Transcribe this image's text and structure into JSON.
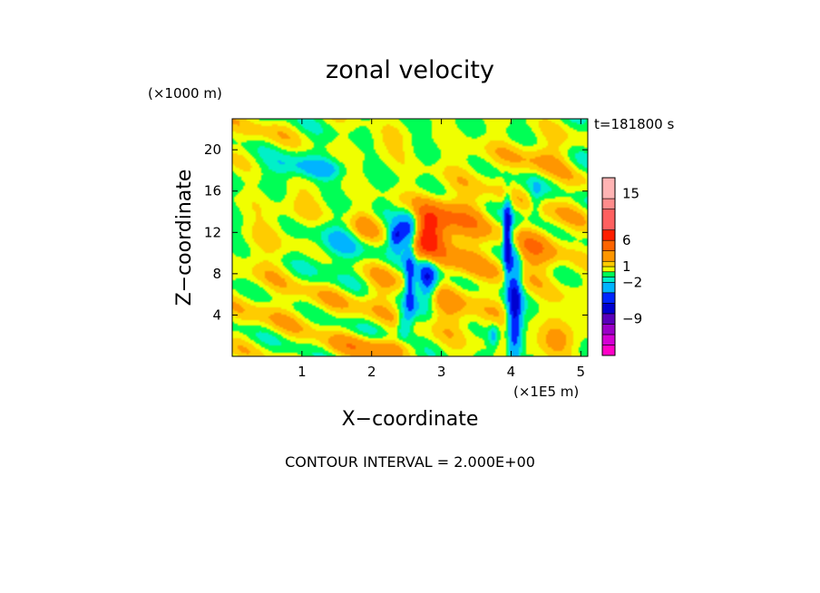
{
  "chart_data": {
    "type": "heatmap",
    "title": "zonal velocity",
    "time_label": "t=181800 s",
    "xlabel": "X−coordinate",
    "ylabel": "Z−coordinate",
    "x_unit": "(×1E5 m)",
    "y_unit": "(×1000 m)",
    "xlim": [
      0,
      5.1
    ],
    "ylim": [
      0,
      23
    ],
    "x_ticks": [
      {
        "value": 1,
        "label": "1"
      },
      {
        "value": 2,
        "label": "2"
      },
      {
        "value": 3,
        "label": "3"
      },
      {
        "value": 4,
        "label": "4"
      },
      {
        "value": 5,
        "label": "5"
      }
    ],
    "y_ticks": [
      {
        "value": 4,
        "label": "4"
      },
      {
        "value": 8,
        "label": "8"
      },
      {
        "value": 12,
        "label": "12"
      },
      {
        "value": 16,
        "label": "16"
      },
      {
        "value": 20,
        "label": "20"
      }
    ],
    "contour_interval": "CONTOUR INTERVAL = 2.000E+00",
    "colorbar": {
      "levels": [
        {
          "color": "#ff00c8"
        },
        {
          "color": "#d400d4"
        },
        {
          "color": "#9b00c8"
        },
        {
          "color": "#5a00bb"
        },
        {
          "color": "#0000d0"
        },
        {
          "color": "#0026ff"
        },
        {
          "color": "#00b4ff"
        },
        {
          "color": "#00f0c8"
        },
        {
          "color": "#00ff55"
        },
        {
          "color": "#f0ff00"
        },
        {
          "color": "#ffcc00"
        },
        {
          "color": "#ff9600"
        },
        {
          "color": "#ff6400"
        },
        {
          "color": "#ff1e00"
        },
        {
          "color": "#ff6060"
        },
        {
          "color": "#ff8c8c"
        },
        {
          "color": "#ffb4b4"
        }
      ],
      "tick_labels": [
        {
          "value": 15,
          "label": "15"
        },
        {
          "value": 6,
          "label": "6"
        },
        {
          "value": 1,
          "label": "1"
        },
        {
          "value": -2,
          "label": "−2"
        },
        {
          "value": -9,
          "label": "−9"
        }
      ]
    },
    "field": {
      "background_value": 0,
      "features": [
        {
          "x": 2.55,
          "z": 12.2,
          "sx": 0.12,
          "sz": 1.4,
          "value": -8
        },
        {
          "x": 2.35,
          "z": 11.6,
          "sx": 0.08,
          "sz": 0.8,
          "value": -6
        },
        {
          "x": 2.75,
          "z": 12.0,
          "sx": 0.2,
          "sz": 1.6,
          "value": 6
        },
        {
          "x": 2.9,
          "z": 12.8,
          "sx": 0.3,
          "sz": 2.0,
          "value": 3
        },
        {
          "x": 2.8,
          "z": 7.5,
          "sx": 0.1,
          "sz": 1.3,
          "value": -7
        },
        {
          "x": 2.55,
          "z": 7.0,
          "sx": 0.05,
          "sz": 2.5,
          "value": -5
        },
        {
          "x": 3.95,
          "z": 11.5,
          "sx": 0.04,
          "sz": 2.5,
          "value": -8
        },
        {
          "x": 4.05,
          "z": 4.5,
          "sx": 0.07,
          "sz": 4.0,
          "value": -7
        },
        {
          "x": 4.3,
          "z": 10.0,
          "sx": 0.25,
          "sz": 1.8,
          "value": 3
        },
        {
          "x": 3.3,
          "z": 9.5,
          "sx": 0.35,
          "sz": 2.0,
          "value": 2
        },
        {
          "x": 2.1,
          "z": 6.0,
          "sx": 0.2,
          "sz": 1.5,
          "value": 2
        },
        {
          "x": 1.65,
          "z": 1.0,
          "sx": 0.3,
          "sz": 0.8,
          "value": 2
        },
        {
          "x": 2.2,
          "z": 0.8,
          "sx": 0.25,
          "sz": 0.7,
          "value": 3
        },
        {
          "x": 4.6,
          "z": 1.5,
          "sx": 0.3,
          "sz": 1.0,
          "value": 2
        },
        {
          "x": 0.9,
          "z": 18.5,
          "sx": 0.3,
          "sz": 0.8,
          "value": -2
        },
        {
          "x": 1.3,
          "z": 18.0,
          "sx": 0.2,
          "sz": 0.6,
          "value": -2
        },
        {
          "x": 1.5,
          "z": 10.5,
          "sx": 0.25,
          "sz": 1.5,
          "value": -2
        },
        {
          "x": 0.45,
          "z": 10.0,
          "sx": 0.3,
          "sz": 2.5,
          "value": 1
        },
        {
          "x": 0.5,
          "z": 4.0,
          "sx": 0.4,
          "sz": 2.0,
          "value": 1
        },
        {
          "x": 1.3,
          "z": 5.0,
          "sx": 0.3,
          "sz": 1.5,
          "value": 1
        },
        {
          "x": 3.6,
          "z": 3.5,
          "sx": 0.35,
          "sz": 2.0,
          "value": 1
        },
        {
          "x": 4.7,
          "z": 13.5,
          "sx": 0.3,
          "sz": 2.5,
          "value": 1
        },
        {
          "x": 3.7,
          "z": 19.0,
          "sx": 0.4,
          "sz": 1.5,
          "value": 1
        },
        {
          "x": 4.5,
          "z": 19.5,
          "sx": 0.25,
          "sz": 1.2,
          "value": 2
        },
        {
          "x": 0.4,
          "z": 21.5,
          "sx": 0.35,
          "sz": 1.0,
          "value": 1
        },
        {
          "x": 1.0,
          "z": 14.5,
          "sx": 0.3,
          "sz": 1.2,
          "value": 1
        },
        {
          "x": 2.2,
          "z": 20.5,
          "sx": 0.25,
          "sz": 1.0,
          "value": 1
        },
        {
          "x": 4.85,
          "z": 5.0,
          "sx": 0.2,
          "sz": 2.0,
          "value": 1
        },
        {
          "x": 3.45,
          "z": 14.0,
          "sx": 0.25,
          "sz": 1.5,
          "value": 2
        },
        {
          "x": 1.9,
          "z": 12.5,
          "sx": 0.15,
          "sz": 1.2,
          "value": 2
        },
        {
          "x": 3.1,
          "z": 4.5,
          "sx": 0.2,
          "sz": 1.5,
          "value": 2
        },
        {
          "x": 2.45,
          "z": 3.0,
          "sx": 0.06,
          "sz": 1.0,
          "value": -3
        },
        {
          "x": 3.75,
          "z": 2.0,
          "sx": 0.06,
          "sz": 0.8,
          "value": -3
        },
        {
          "x": 4.35,
          "z": 15.0,
          "sx": 0.07,
          "sz": 1.2,
          "value": -2
        }
      ]
    }
  }
}
